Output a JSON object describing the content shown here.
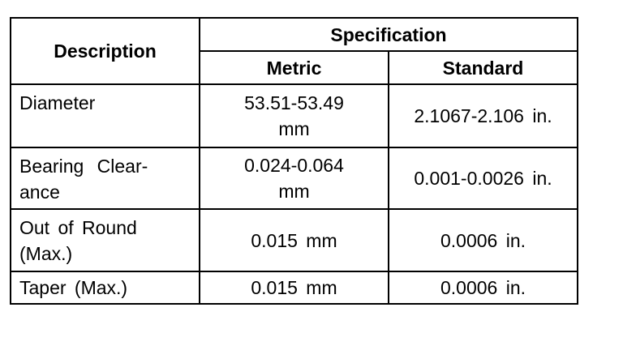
{
  "table": {
    "header": {
      "description": "Description",
      "specification": "Specification",
      "metric": "Metric",
      "standard": "Standard"
    },
    "rows": [
      [
        [
          "Diameter"
        ],
        [
          "53.51-53.49",
          "mm"
        ],
        [
          "2.1067-2.106 in."
        ]
      ],
      [
        [
          "Bearing Clear-",
          "ance"
        ],
        [
          "0.024-0.064",
          "mm"
        ],
        [
          "0.001-0.0026 in."
        ]
      ],
      [
        [
          "Out of Round",
          "(Max.)"
        ],
        [
          "0.015 mm"
        ],
        [
          "0.0006 in."
        ]
      ],
      [
        [
          "Taper (Max.)"
        ],
        [
          "0.015 mm"
        ],
        [
          "0.0006 in."
        ]
      ]
    ]
  }
}
